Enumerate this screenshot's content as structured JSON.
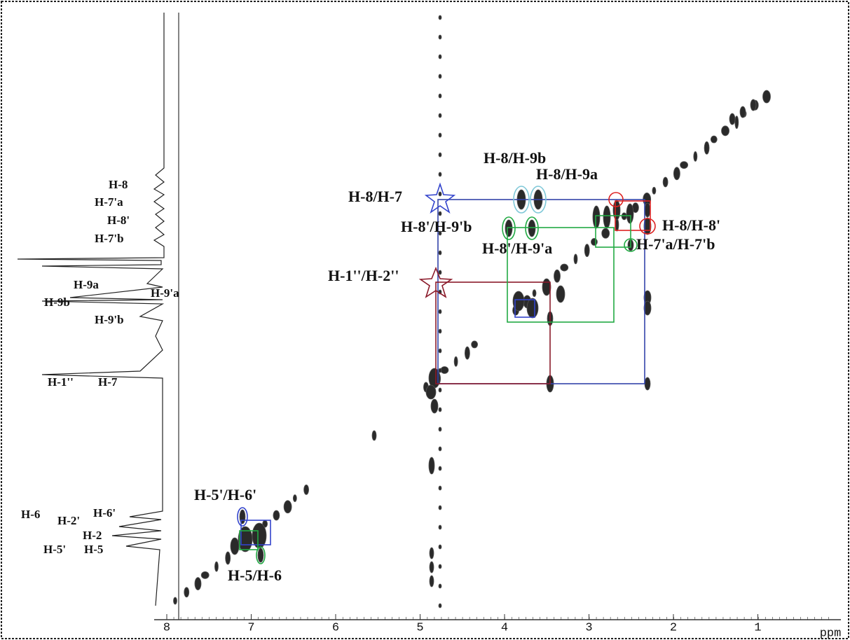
{
  "axis": {
    "ticks": [
      "8",
      "7",
      "6",
      "5",
      "4",
      "3",
      "2",
      "1"
    ],
    "unit": "ppm"
  },
  "proton_labels": [
    "H-8",
    "H-7'a",
    "H-8'",
    "H-7'b",
    "H-9a",
    "H-9'a",
    "H-9b",
    "H-9'b",
    "H-1''",
    "H-7",
    "H-6",
    "H-2'",
    "H-6'",
    "H-2",
    "H-5'",
    "H-5"
  ],
  "correlation_labels": [
    "H-8/H-9b",
    "H-8/H-9a",
    "H-8/H-7",
    "H-8'/H-9'b",
    "H-8/H-8'",
    "H-8'/H-9'a",
    "H-7'a/H-7'b",
    "H-1''/H-2''",
    "H-5'/H-6'",
    "H-5/H-6"
  ]
}
